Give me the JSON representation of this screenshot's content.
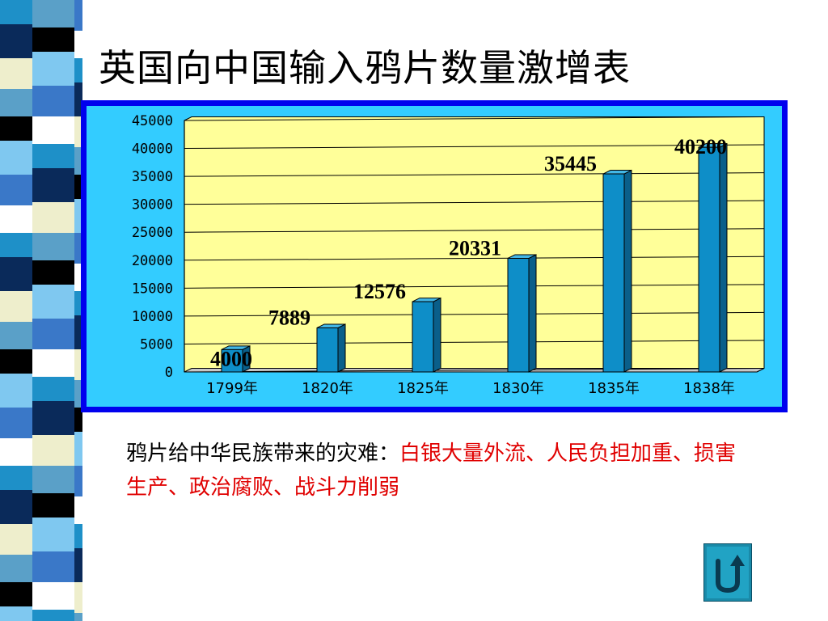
{
  "slide": {
    "title": "英国向中国输入鸦片数量激增表",
    "caption_plain": "鸦片给中华民族带来的灾难：",
    "caption_highlight": "白银大量外流、人民负担加重、损害生产、政治腐败、战斗力削弱"
  },
  "colors": {
    "bar": "#0e8ec8",
    "bar_side": "#0a5f8a",
    "bar_top": "#43b7e6",
    "plot_bg": "#ffff99",
    "frame_outer": "#0000ee",
    "frame_inner": "#33ccff",
    "caption_highlight": "#e00000"
  },
  "chart_data": {
    "type": "bar",
    "categories": [
      "1799年",
      "1820年",
      "1825年",
      "1830年",
      "1835年",
      "1838年"
    ],
    "values": [
      4000,
      7889,
      12576,
      20331,
      35445,
      40200
    ],
    "data_labels": [
      "4000",
      "7889",
      "12576",
      "20331",
      "35445",
      "40200"
    ],
    "ylim": [
      0,
      45000
    ],
    "yticks": [
      "0",
      "5000",
      "10000",
      "15000",
      "20000",
      "25000",
      "30000",
      "35000",
      "40000",
      "45000"
    ],
    "grid": true,
    "legend": "none"
  },
  "return_button": {
    "icon": "u-turn-arrow-icon"
  }
}
